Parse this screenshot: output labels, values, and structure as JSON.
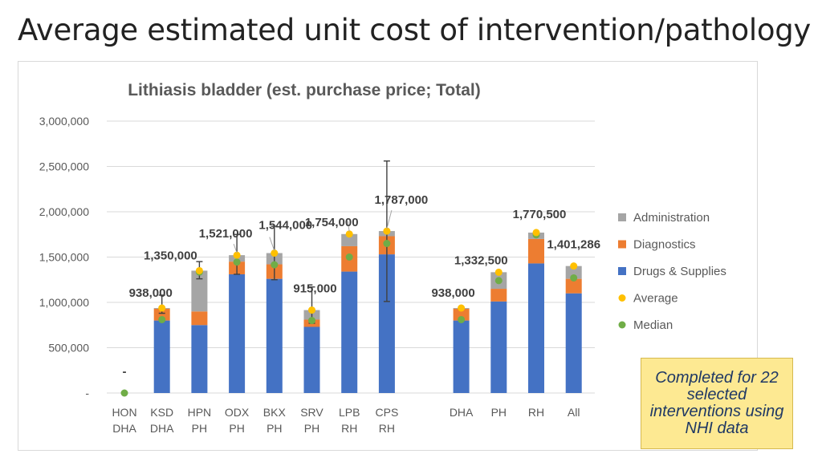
{
  "slide": {
    "title": "Average estimated unit cost of intervention/pathology",
    "note": "Completed for 22 selected interventions using NHI data"
  },
  "colors": {
    "drugs": "#4472c4",
    "diagnostics": "#ed7d31",
    "administration": "#a5a5a5",
    "average": "#ffc000",
    "median": "#70ad47",
    "grid": "#d9d9d9",
    "axis_text": "#595959",
    "label_text": "#404040"
  },
  "chart_data": {
    "type": "bar",
    "stacked": true,
    "title": "Lithiasis bladder (est. purchase price; Total)",
    "xlabel": "",
    "ylabel": "",
    "ylim": [
      0,
      3000000
    ],
    "y_ticks": [
      0,
      500000,
      1000000,
      1500000,
      2000000,
      2500000,
      3000000
    ],
    "y_tick_labels": [
      "-",
      "500,000",
      "1,000,000",
      "1,500,000",
      "2,000,000",
      "2,500,000",
      "3,000,000"
    ],
    "grid": true,
    "legend_position": "right",
    "categories": [
      {
        "line1": "HON",
        "line2": "DHA",
        "gap_before": false
      },
      {
        "line1": "KSD",
        "line2": "DHA",
        "gap_before": false
      },
      {
        "line1": "HPN",
        "line2": "PH",
        "gap_before": false
      },
      {
        "line1": "ODX",
        "line2": "PH",
        "gap_before": false
      },
      {
        "line1": "BKX",
        "line2": "PH",
        "gap_before": false
      },
      {
        "line1": "SRV",
        "line2": "PH",
        "gap_before": false
      },
      {
        "line1": "LPB",
        "line2": "RH",
        "gap_before": false
      },
      {
        "line1": "CPS",
        "line2": "RH",
        "gap_before": false
      },
      {
        "line1": "DHA",
        "line2": "",
        "gap_before": true
      },
      {
        "line1": "PH",
        "line2": "",
        "gap_before": false
      },
      {
        "line1": "RH",
        "line2": "",
        "gap_before": false
      },
      {
        "line1": "All",
        "line2": "",
        "gap_before": false
      }
    ],
    "series": [
      {
        "name": "Drugs & Supplies",
        "key": "drugs",
        "values": [
          0,
          800000,
          750000,
          1310000,
          1260000,
          730000,
          1340000,
          1530000,
          800000,
          1010000,
          1430000,
          1100000
        ]
      },
      {
        "name": "Diagnostics",
        "key": "diagnostics",
        "values": [
          0,
          130000,
          150000,
          140000,
          160000,
          80000,
          280000,
          200000,
          130000,
          140000,
          270000,
          160000
        ]
      },
      {
        "name": "Administration",
        "key": "administration",
        "values": [
          0,
          8000,
          450000,
          71000,
          124000,
          105000,
          134000,
          57000,
          8000,
          183000,
          70000,
          141000
        ]
      }
    ],
    "average": [
      0,
      938000,
      1350000,
      1521000,
      1544000,
      915000,
      1754000,
      1787000,
      938000,
      1332500,
      1770500,
      1401286
    ],
    "median": [
      0,
      810000,
      1335000,
      1445000,
      1415000,
      800000,
      1500000,
      1650000,
      810000,
      1240000,
      1745000,
      1270000
    ],
    "error_bars": [
      null,
      [
        880000,
        1080000
      ],
      [
        1260000,
        1450000
      ],
      [
        1310000,
        1750000
      ],
      [
        1250000,
        1840000
      ],
      [
        770000,
        1170000
      ],
      [
        null,
        null
      ],
      [
        1010000,
        2560000
      ],
      null,
      null,
      null,
      null
    ],
    "data_labels": [
      "-",
      "938,000",
      "1,350,000",
      "1,521,000",
      "1,544,000",
      "915,000",
      "1,754,000",
      "1,787,000",
      "938,000",
      "1,332,500",
      "1,770,500",
      "1,401,286"
    ],
    "legend": [
      "Administration",
      "Diagnostics",
      "Drugs & Supplies",
      "Average",
      "Median"
    ]
  }
}
